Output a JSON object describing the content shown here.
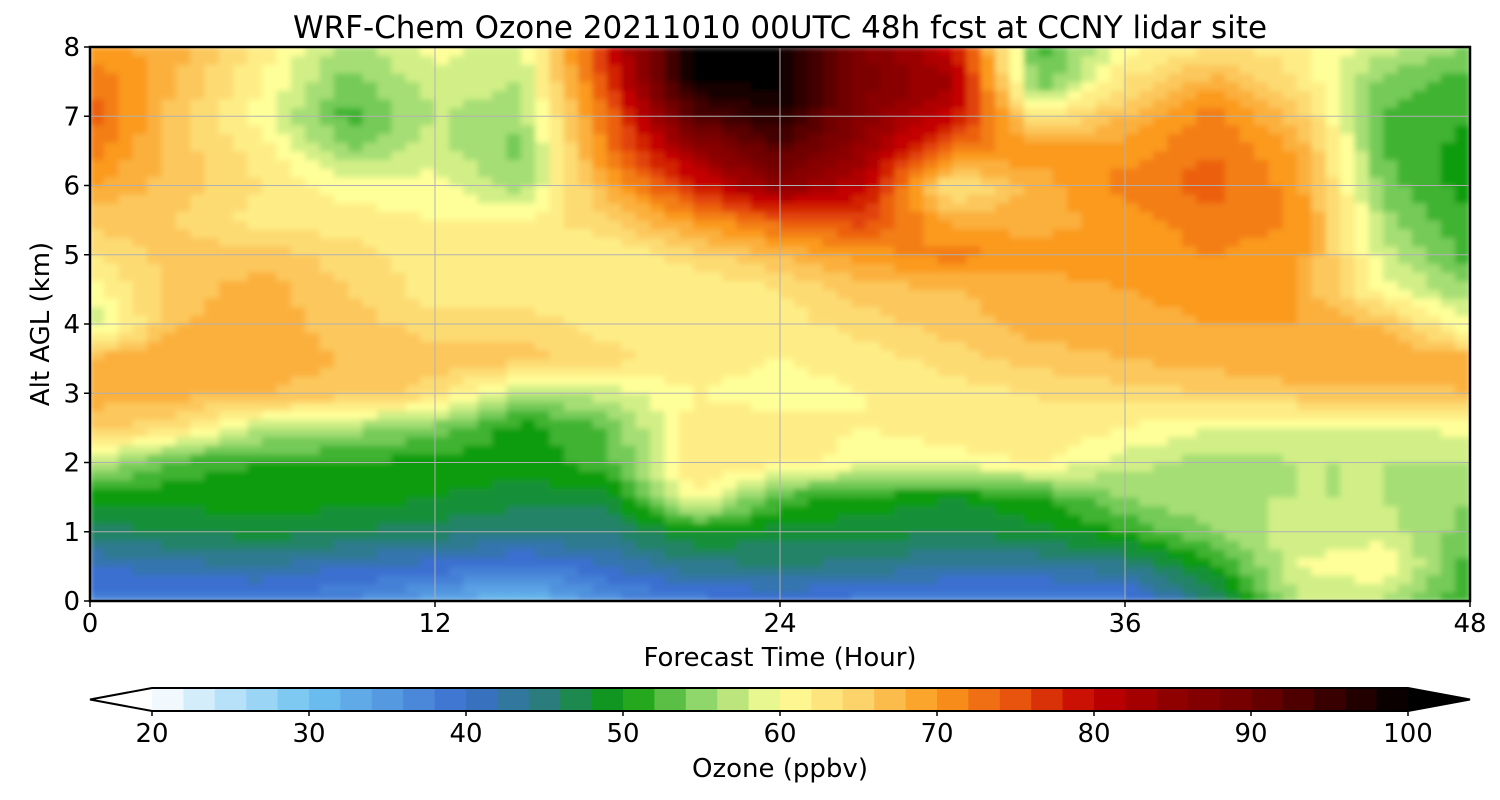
{
  "chart_data": {
    "type": "heatmap",
    "title": "WRF-Chem Ozone  20211010 00UTC 48h fcst at CCNY lidar site",
    "xlabel": "Forecast Time (Hour)",
    "ylabel": "Alt AGL (km)",
    "xlim": [
      0,
      48
    ],
    "ylim": [
      0,
      8
    ],
    "x_ticks": [
      0,
      12,
      24,
      36,
      48
    ],
    "y_ticks": [
      0,
      1,
      2,
      3,
      4,
      5,
      6,
      7,
      8
    ],
    "grid": true,
    "x": [
      0,
      3,
      6,
      9,
      12,
      15,
      18,
      21,
      24,
      27,
      30,
      33,
      36,
      39,
      42,
      45,
      48
    ],
    "y": [
      0,
      0.5,
      1,
      1.5,
      2,
      2.5,
      3,
      3.5,
      4,
      4.5,
      5,
      5.5,
      6,
      6.5,
      7,
      7.5,
      8
    ],
    "z": [
      [
        38,
        38,
        38,
        37,
        34,
        30,
        36,
        38,
        39,
        38,
        37,
        37,
        38,
        45,
        57,
        57,
        51
      ],
      [
        41,
        42,
        43,
        41,
        40,
        38,
        41,
        44,
        45,
        44,
        43,
        43,
        44,
        50,
        59,
        61,
        52
      ],
      [
        46,
        47,
        48,
        47,
        46,
        45,
        45,
        49,
        48,
        48,
        47,
        48,
        51,
        55,
        58,
        58,
        54
      ],
      [
        50,
        50,
        50,
        50,
        49,
        48,
        48,
        61,
        52,
        50,
        49,
        51,
        55,
        57,
        57,
        57,
        55
      ],
      [
        58,
        52,
        51,
        51,
        50,
        50,
        52,
        63,
        62,
        60,
        60,
        61,
        58,
        56,
        57,
        57,
        57
      ],
      [
        66,
        63,
        57,
        56,
        54,
        50,
        53,
        62,
        62,
        61,
        62,
        63,
        61,
        59,
        58,
        58,
        60
      ],
      [
        68,
        68,
        67,
        66,
        64,
        56,
        58,
        61,
        60,
        61,
        62,
        63,
        64,
        65,
        66,
        66,
        67
      ],
      [
        68,
        69,
        68,
        67,
        66,
        66,
        64,
        62,
        61,
        62,
        64,
        66,
        67,
        68,
        69,
        69,
        68
      ],
      [
        57,
        67,
        68,
        66,
        64,
        64,
        62,
        61,
        62,
        64,
        66,
        68,
        68,
        69,
        69,
        67,
        59
      ],
      [
        60,
        66,
        68,
        65,
        62,
        62,
        62,
        61,
        63,
        66,
        67,
        68,
        69,
        70,
        69,
        60,
        55
      ],
      [
        63,
        66,
        66,
        64,
        62,
        61,
        61,
        64,
        67,
        70,
        72,
        70,
        70,
        71,
        70,
        58,
        52
      ],
      [
        66,
        65,
        62,
        62,
        61,
        61,
        65,
        70,
        74,
        76,
        68,
        68,
        70,
        72,
        71,
        56,
        51
      ],
      [
        69,
        66,
        63,
        60,
        60,
        56,
        68,
        78,
        86,
        80,
        62,
        68,
        72,
        74,
        70,
        54,
        50
      ],
      [
        72,
        66,
        62,
        55,
        58,
        54,
        72,
        84,
        92,
        84,
        72,
        70,
        70,
        73,
        69,
        53,
        50
      ],
      [
        74,
        66,
        60,
        52,
        57,
        56,
        73,
        92,
        97,
        86,
        80,
        62,
        67,
        72,
        66,
        53,
        51
      ],
      [
        73,
        67,
        61,
        54,
        58,
        57,
        76,
        99,
        100,
        88,
        83,
        53,
        63,
        68,
        63,
        54,
        52
      ],
      [
        70,
        68,
        62,
        56,
        60,
        58,
        78,
        100,
        100,
        87,
        80,
        52,
        60,
        63,
        62,
        58,
        55
      ]
    ],
    "colorbar": {
      "label": "Ozone  (ppbv)",
      "min": 20,
      "max": 100,
      "ticks": [
        20,
        30,
        40,
        50,
        60,
        70,
        80,
        90,
        100
      ],
      "extend": "both",
      "stops": [
        {
          "value": 20,
          "color": "#ffffff"
        },
        {
          "value": 30,
          "color": "#6fc3f1"
        },
        {
          "value": 40,
          "color": "#3b6fd0"
        },
        {
          "value": 45,
          "color": "#2b7d7d"
        },
        {
          "value": 50,
          "color": "#0a9c0a"
        },
        {
          "value": 55,
          "color": "#8fd66b"
        },
        {
          "value": 60,
          "color": "#ffff99"
        },
        {
          "value": 65,
          "color": "#fcd26a"
        },
        {
          "value": 70,
          "color": "#fb9a1e"
        },
        {
          "value": 75,
          "color": "#e8530e"
        },
        {
          "value": 80,
          "color": "#c40000"
        },
        {
          "value": 85,
          "color": "#8f0000"
        },
        {
          "value": 90,
          "color": "#700000"
        },
        {
          "value": 100,
          "color": "#000000"
        }
      ]
    }
  }
}
